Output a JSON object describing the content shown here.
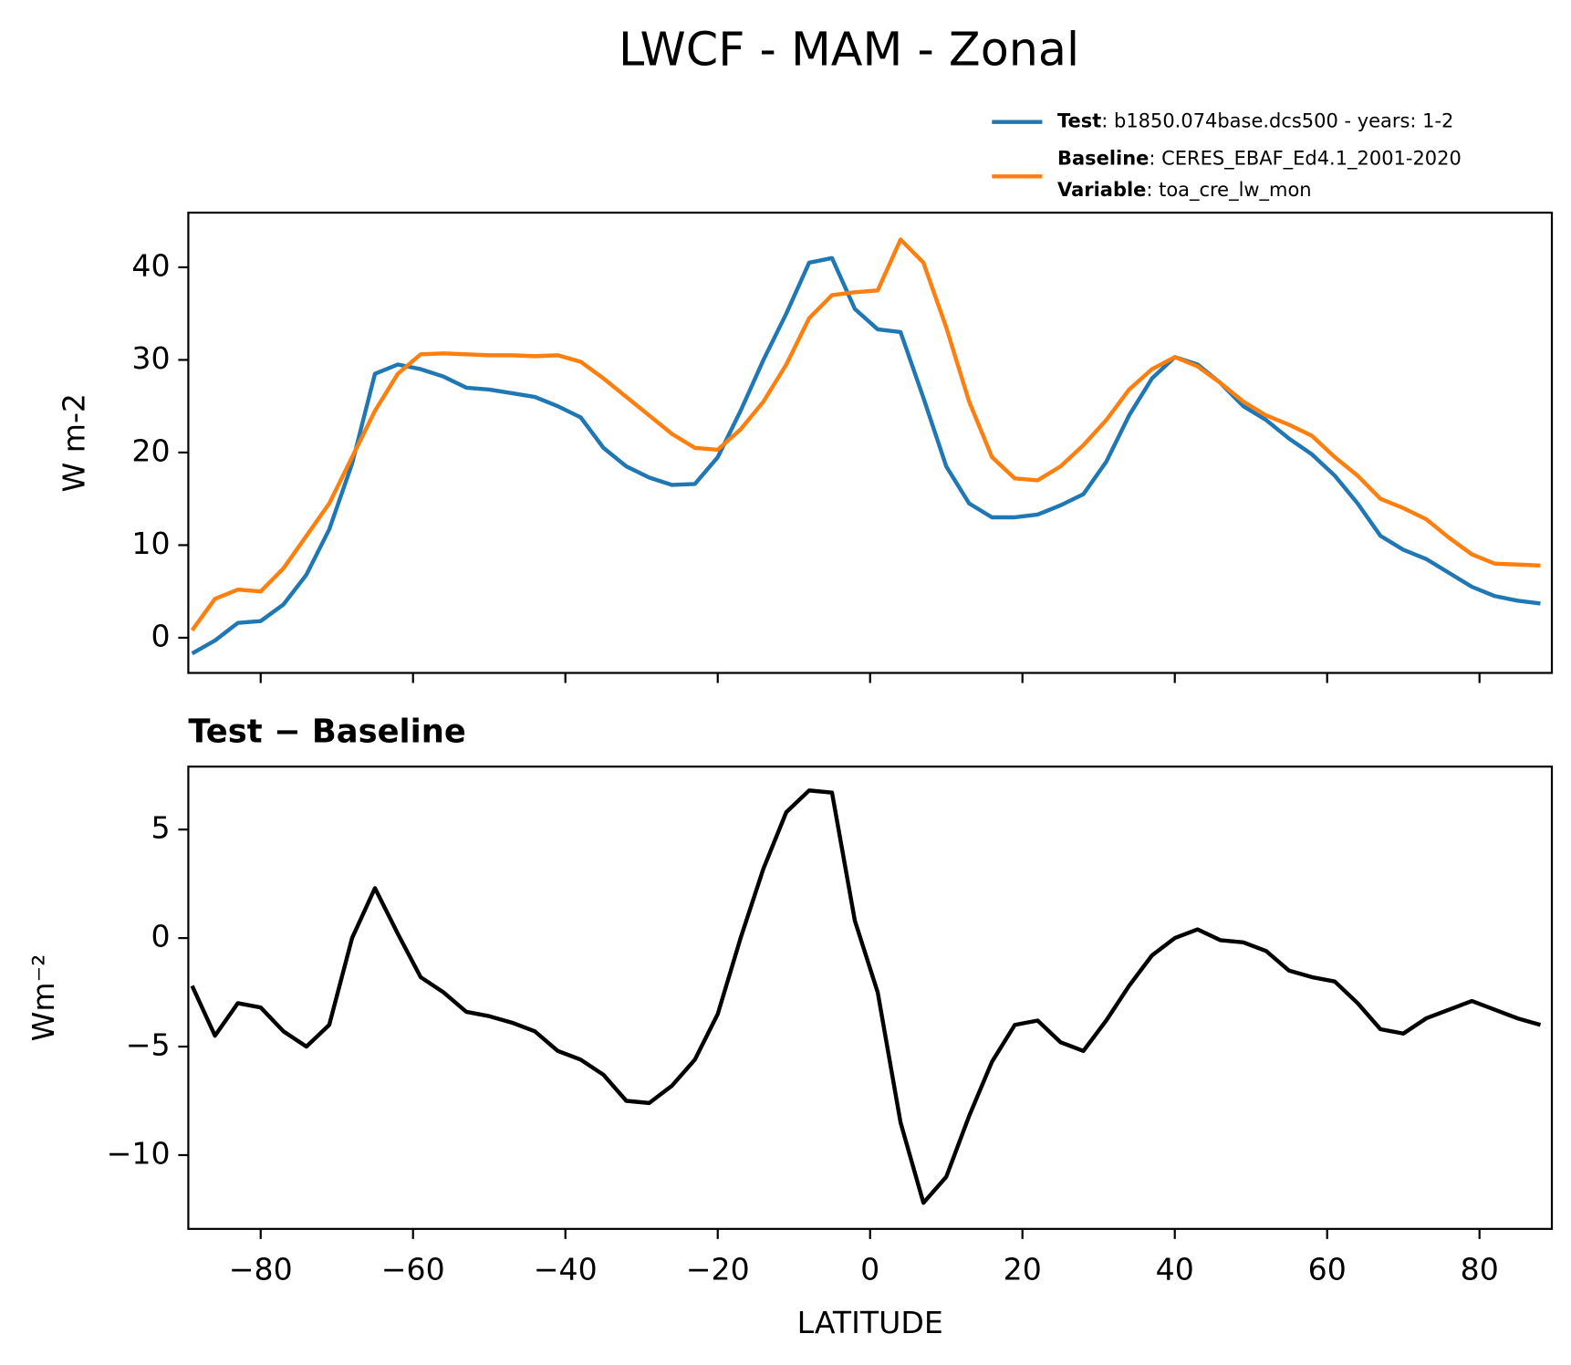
{
  "title": "LWCF - MAM - Zonal",
  "chart_data": [
    {
      "type": "line",
      "ylabel": "W m-2",
      "x": [
        -89,
        -86,
        -83,
        -80,
        -77,
        -74,
        -71,
        -68,
        -65,
        -62,
        -59,
        -56,
        -53,
        -50,
        -47,
        -44,
        -41,
        -38,
        -35,
        -32,
        -29,
        -26,
        -23,
        -20,
        -17,
        -14,
        -11,
        -8,
        -5,
        -2,
        1,
        4,
        7,
        10,
        13,
        16,
        19,
        22,
        25,
        28,
        31,
        34,
        37,
        40,
        43,
        46,
        49,
        52,
        55,
        58,
        61,
        64,
        67,
        70,
        73,
        76,
        79,
        82,
        85,
        88
      ],
      "series": [
        {
          "name": "Test",
          "detail": ": b1850.074base.dcs500 - years: 1-2",
          "color": "#1f77b4",
          "values": [
            -1.7,
            -0.3,
            1.6,
            1.8,
            3.6,
            6.8,
            11.7,
            18.8,
            28.5,
            29.5,
            29.0,
            28.2,
            27.0,
            26.8,
            26.4,
            26.0,
            25.0,
            23.8,
            20.5,
            18.5,
            17.3,
            16.5,
            16.6,
            19.5,
            24.5,
            30.0,
            35.0,
            40.5,
            41.0,
            35.5,
            33.3,
            33.0,
            25.9,
            18.5,
            14.5,
            13.0,
            13.0,
            13.3,
            14.3,
            15.5,
            19.0,
            24.0,
            28.0,
            30.3,
            29.5,
            27.5,
            25.0,
            23.5,
            21.5,
            19.8,
            17.5,
            14.5,
            11.0,
            9.5,
            8.5,
            7.0,
            5.5,
            4.5,
            4.0,
            3.7
          ]
        },
        {
          "name": "Baseline",
          "detail": ": CERES_EBAF_Ed4.1_2001-2020",
          "color": "#ff7f0e",
          "values": [
            0.8,
            4.2,
            5.2,
            5.0,
            7.5,
            11.0,
            14.5,
            19.5,
            24.5,
            28.5,
            30.6,
            30.7,
            30.6,
            30.5,
            30.5,
            30.4,
            30.5,
            29.8,
            28.0,
            26.0,
            24.0,
            22.0,
            20.5,
            20.3,
            22.5,
            25.5,
            29.5,
            34.5,
            37.0,
            37.3,
            37.5,
            43.0,
            40.5,
            33.5,
            25.5,
            19.5,
            17.2,
            17.0,
            18.5,
            20.8,
            23.5,
            26.8,
            29.0,
            30.3,
            29.3,
            27.5,
            25.5,
            24.0,
            23.0,
            21.8,
            19.5,
            17.5,
            15.0,
            14.0,
            12.8,
            10.8,
            9.0,
            8.0,
            7.9,
            7.8
          ]
        }
      ],
      "legend_note": {
        "label": "Variable",
        "text": ": toa_cre_lw_mon"
      },
      "legend": "upper right outside",
      "xlim": [
        -89.5,
        89.5
      ],
      "ylim": [
        -3.8,
        45.9
      ],
      "xticks": [
        -80,
        -60,
        -40,
        -20,
        0,
        20,
        40,
        60,
        80
      ],
      "xtick_labels": false,
      "yticks": [
        0,
        10,
        20,
        30,
        40
      ],
      "grid": false
    },
    {
      "type": "line",
      "title": "Test − Baseline",
      "ylabel": "Wm⁻²",
      "xlabel": "LATITUDE",
      "x": [
        -89,
        -86,
        -83,
        -80,
        -77,
        -74,
        -71,
        -68,
        -65,
        -62,
        -59,
        -56,
        -53,
        -50,
        -47,
        -44,
        -41,
        -38,
        -35,
        -32,
        -29,
        -26,
        -23,
        -20,
        -17,
        -14,
        -11,
        -8,
        -5,
        -2,
        1,
        4,
        7,
        10,
        13,
        16,
        19,
        22,
        25,
        28,
        31,
        34,
        37,
        40,
        43,
        46,
        49,
        52,
        55,
        58,
        61,
        64,
        67,
        70,
        73,
        76,
        79,
        82,
        85,
        88
      ],
      "series": [
        {
          "color": "#000000",
          "values": [
            -2.2,
            -4.5,
            -3.0,
            -3.2,
            -4.3,
            -5.0,
            -4.0,
            0.0,
            2.3,
            0.2,
            -1.8,
            -2.5,
            -3.4,
            -3.6,
            -3.9,
            -4.3,
            -5.2,
            -5.6,
            -6.3,
            -7.5,
            -7.6,
            -6.8,
            -5.6,
            -3.5,
            0.0,
            3.2,
            5.8,
            6.8,
            6.7,
            0.8,
            -2.5,
            -8.5,
            -12.2,
            -11.0,
            -8.2,
            -5.7,
            -4.0,
            -3.8,
            -4.8,
            -5.2,
            -3.8,
            -2.2,
            -0.8,
            0.0,
            0.4,
            -0.1,
            -0.2,
            -0.6,
            -1.5,
            -1.8,
            -2.0,
            -3.0,
            -4.2,
            -4.4,
            -3.7,
            -3.3,
            -2.9,
            -3.3,
            -3.7,
            -4.0
          ]
        }
      ],
      "xlim": [
        -89.5,
        89.5
      ],
      "ylim": [
        -13.4,
        7.9
      ],
      "xticks": [
        {
          "value": -80,
          "label": "−80"
        },
        {
          "value": -60,
          "label": "−60"
        },
        {
          "value": -40,
          "label": "−40"
        },
        {
          "value": -20,
          "label": "−20"
        },
        0,
        20,
        40,
        60,
        80
      ],
      "yticks": [
        {
          "value": -10,
          "label": "−10"
        },
        {
          "value": -5,
          "label": "−5"
        },
        0,
        5
      ],
      "grid": false
    }
  ]
}
